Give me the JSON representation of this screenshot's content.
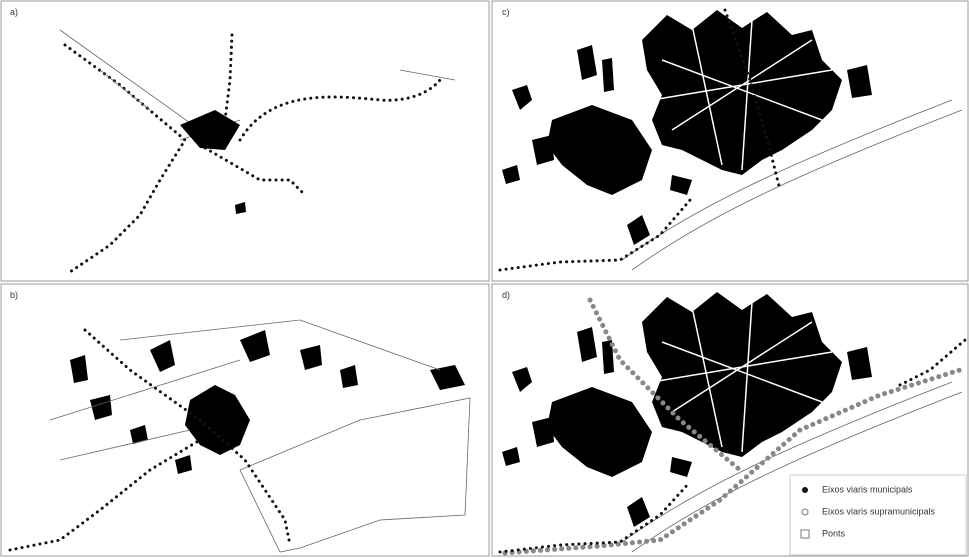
{
  "panels": [
    {
      "label": "a)"
    },
    {
      "label": "b)"
    },
    {
      "label": "c)"
    },
    {
      "label": "d)"
    }
  ],
  "legend": {
    "items": [
      {
        "label": "Eixos viaris municipals"
      },
      {
        "label": "Eixos viaris supramunicipals"
      },
      {
        "label": "Ponts"
      }
    ]
  }
}
